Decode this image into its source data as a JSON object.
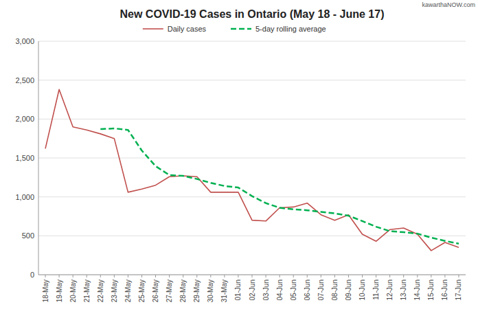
{
  "chart_data": {
    "type": "line",
    "title": "New COVID-19 Cases in Ontario (May 18 - June 17)",
    "annotations": [
      "kawarthaNOW.com"
    ],
    "categories": [
      "18-May",
      "19-May",
      "20-May",
      "21-May",
      "22-May",
      "23-May",
      "24-May",
      "25-May",
      "26-May",
      "27-May",
      "28-May",
      "29-May",
      "30-May",
      "31-May",
      "01-Jun",
      "02-Jun",
      "03-Jun",
      "04-Jun",
      "05-Jun",
      "06-Jun",
      "07-Jun",
      "08-Jun",
      "09-Jun",
      "10-Jun",
      "11-Jun",
      "12-Jun",
      "13-Jun",
      "14-Jun",
      "15-Jun",
      "16-Jun",
      "17-Jun"
    ],
    "series": [
      {
        "name": "Daily cases",
        "color": "#c0504d",
        "line_style": "solid",
        "values": [
          1620,
          2380,
          1900,
          1860,
          1810,
          1750,
          1060,
          1100,
          1150,
          1260,
          1270,
          1260,
          1060,
          1060,
          1060,
          700,
          690,
          860,
          870,
          920,
          770,
          700,
          770,
          520,
          430,
          580,
          600,
          520,
          310,
          415,
          350
        ]
      },
      {
        "name": "5-day rolling average",
        "color": "#00b050",
        "line_style": "dashed",
        "values": [
          null,
          null,
          null,
          null,
          1870,
          1880,
          1860,
          1595,
          1395,
          1280,
          1270,
          1230,
          1180,
          1140,
          1120,
          1010,
          920,
          860,
          840,
          828,
          808,
          788,
          758,
          690,
          617,
          560,
          546,
          528,
          476,
          435,
          400
        ]
      }
    ],
    "ylim": [
      0,
      3000
    ],
    "yticks": [
      0,
      500,
      {
        "value": 1000,
        "label": "1,000"
      },
      {
        "value": 1500,
        "label": "1,500"
      },
      {
        "value": 2000,
        "label": "2,000"
      },
      {
        "value": 2500,
        "label": "2,500"
      },
      {
        "value": 3000,
        "label": "3,000"
      }
    ],
    "grid": true,
    "legend": "top"
  }
}
